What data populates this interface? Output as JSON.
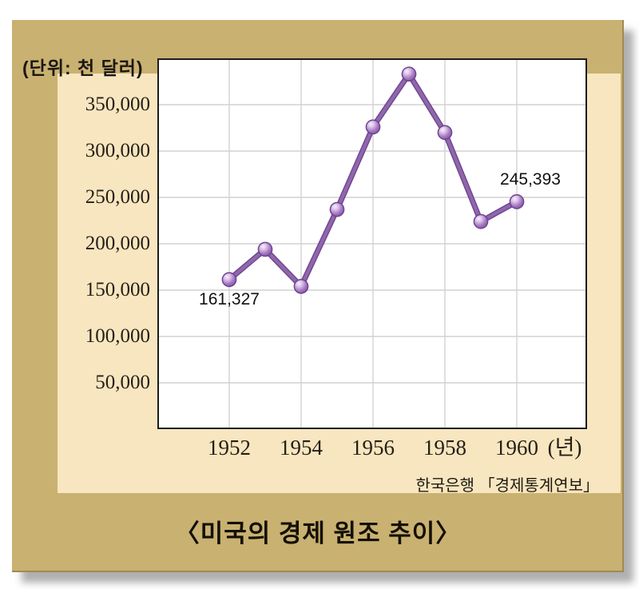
{
  "board": {
    "unit_label": "(단위: 천 달러)",
    "source_text": "한국은행 「경제통계연보」",
    "caption": "〈미국의 경제 원조 추이〉"
  },
  "colors": {
    "frame": "#c9b171",
    "panel": "#f8e6c0",
    "plot_background": "#ffffff",
    "plot_border": "#1c1c1c",
    "gridline": "#d2d2d2",
    "line": "#9066ac",
    "line_outline": "#6e4590",
    "marker_edge": "#6e4590",
    "marker_highlight": "#f7f0fb",
    "marker_mid": "#a97cc4",
    "marker_dark": "#7c4e9a",
    "text": "#1c1812"
  },
  "chart_data": {
    "type": "line",
    "title": "미국의 경제 원조 추이",
    "unit": "천 달러",
    "xlabel": "(년)",
    "ylabel": "",
    "x": [
      1952,
      1953,
      1954,
      1955,
      1956,
      1957,
      1958,
      1959,
      1960
    ],
    "values": [
      161327,
      194000,
      154000,
      237000,
      326000,
      383000,
      320000,
      224000,
      245393
    ],
    "x_tick_years": [
      1952,
      1954,
      1956,
      1958,
      1960
    ],
    "x_tick_labels": [
      "1952",
      "1954",
      "1956",
      "1958",
      "1960"
    ],
    "y_ticks": [
      50000,
      100000,
      150000,
      200000,
      250000,
      300000,
      350000
    ],
    "y_tick_labels": [
      "50,000",
      "100,000",
      "150,000",
      "200,000",
      "250,000",
      "300,000",
      "350,000"
    ],
    "ylim": [
      0,
      400000
    ],
    "xlim_years": [
      1950,
      1962
    ],
    "grid": true,
    "legend": null,
    "point_labels": [
      {
        "year": 1952,
        "text": "161,327",
        "placement": "below"
      },
      {
        "year": 1960,
        "text": "245,393",
        "placement": "above-right"
      }
    ]
  }
}
